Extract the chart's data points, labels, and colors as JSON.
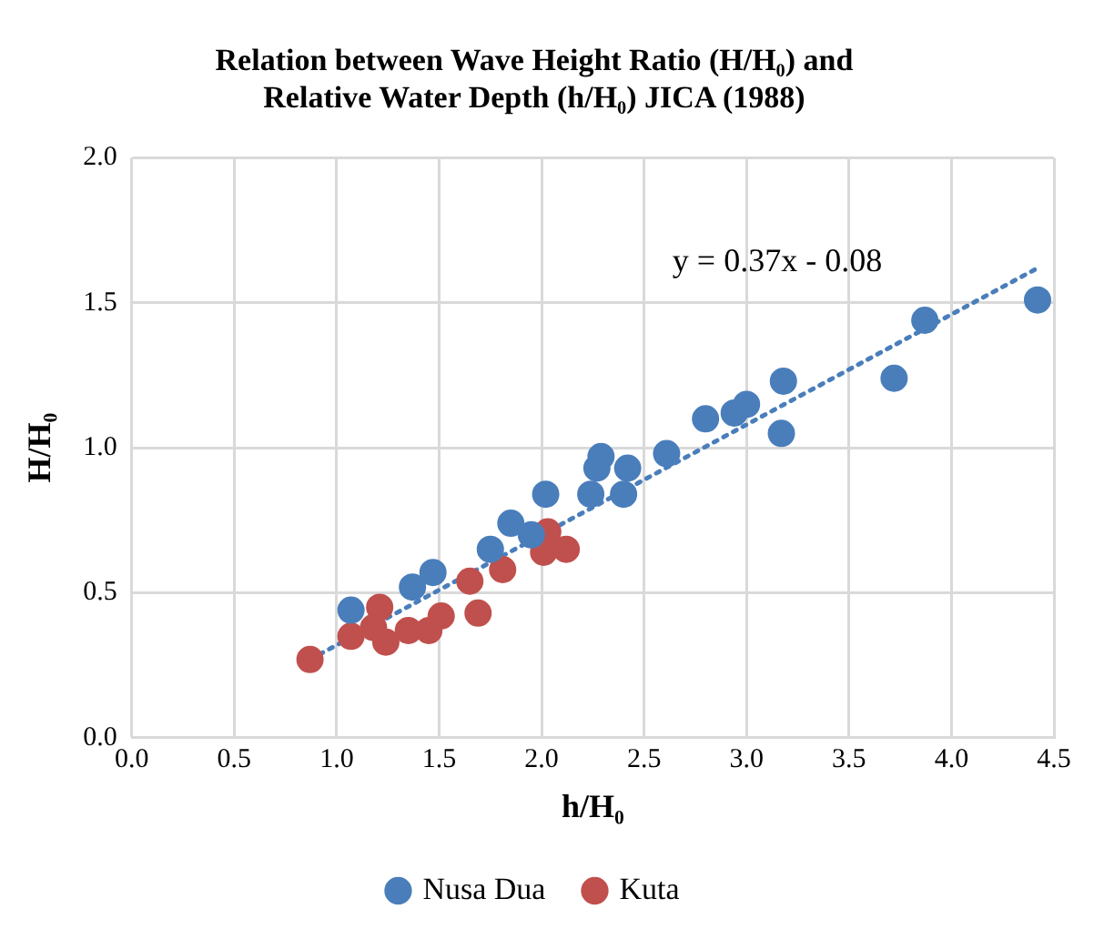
{
  "chart_data": {
    "type": "scatter",
    "title": "Relation between Wave Height Ratio (H/H₀) and\nRelative Water Depth (h/H₀) JICA (1988)",
    "xlabel": "h/H₀",
    "ylabel": "H/H₀",
    "xlim": [
      0,
      4.5
    ],
    "xticks": [
      {
        "value": 0,
        "label": "0.0"
      },
      0.5,
      {
        "value": 1,
        "label": "1.0"
      },
      1.5,
      {
        "value": 2,
        "label": "2.0"
      },
      2.5,
      {
        "value": 3,
        "label": "3.0"
      },
      3.5,
      {
        "value": 4,
        "label": "4.0"
      },
      4.5
    ],
    "ylim": [
      0,
      2
    ],
    "yticks": [
      {
        "value": 0,
        "label": "0.0"
      },
      0.5,
      {
        "value": 1,
        "label": "1.0"
      },
      1.5,
      {
        "value": 2,
        "label": "2.0"
      }
    ],
    "grid": true,
    "legend": "bottom",
    "marker": "circle",
    "annotations": [
      "y = 0.37x - 0.08"
    ],
    "series": [
      {
        "name": "Nusa Dua",
        "color": "#4a7ebb",
        "x": [
          1.07,
          1.37,
          1.47,
          1.75,
          1.85,
          1.95,
          2.02,
          2.24,
          2.4,
          2.27,
          2.29,
          2.42,
          2.61,
          2.8,
          2.94,
          3.0,
          3.17,
          3.18,
          3.72,
          3.87,
          4.42
        ],
        "values": [
          0.44,
          0.52,
          0.57,
          0.65,
          0.74,
          0.7,
          0.84,
          0.84,
          0.84,
          0.93,
          0.97,
          0.93,
          0.98,
          1.1,
          1.12,
          1.15,
          1.05,
          1.23,
          1.24,
          1.44,
          1.51
        ]
      },
      {
        "name": "Kuta",
        "color": "#c0504d",
        "x": [
          0.87,
          1.07,
          1.18,
          1.21,
          1.24,
          1.35,
          1.42,
          1.45,
          1.51,
          1.69,
          1.65,
          1.81,
          2.03,
          2.01,
          2.12
        ],
        "values": [
          0.27,
          0.35,
          0.38,
          0.45,
          0.33,
          0.37,
          null,
          0.37,
          0.42,
          0.43,
          0.54,
          0.58,
          0.71,
          0.64,
          0.65
        ]
      },
      {
        "type": "line",
        "color": "#4a7ebb",
        "line_style": "dotted",
        "marker": "none",
        "x": [
          0.87,
          4.42
        ],
        "values": [
          0.27,
          1.62
        ]
      }
    ]
  }
}
